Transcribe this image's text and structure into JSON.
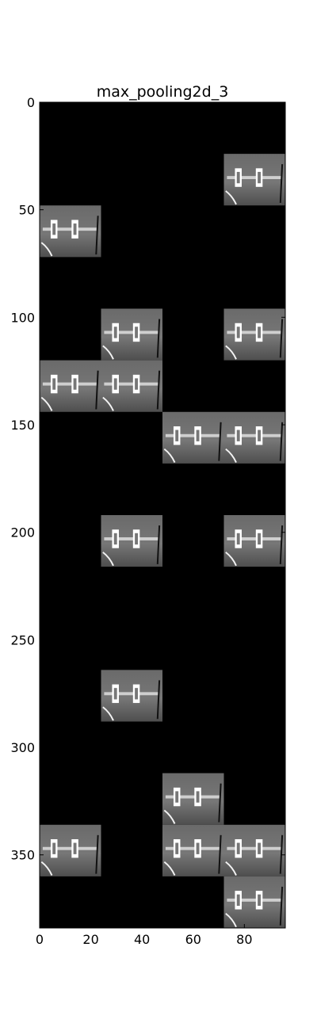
{
  "chart_data": {
    "type": "heatmap",
    "title": "max_pooling2d_3",
    "xlabel": "",
    "ylabel": "",
    "xlim": [
      0,
      96
    ],
    "ylim": [
      384,
      0
    ],
    "x_ticks": [
      0,
      20,
      40,
      60,
      80
    ],
    "y_ticks": [
      0,
      50,
      100,
      150,
      200,
      250,
      300,
      350
    ],
    "colormap": "gray",
    "background_color": "#000000",
    "grid": false,
    "tile_size": 24,
    "grid_columns": 4,
    "grid_rows": 16,
    "active_tiles": [
      {
        "row": 1,
        "col": 3
      },
      {
        "row": 2,
        "col": 0
      },
      {
        "row": 4,
        "col": 1
      },
      {
        "row": 4,
        "col": 3
      },
      {
        "row": 5,
        "col": 0
      },
      {
        "row": 5,
        "col": 1
      },
      {
        "row": 6,
        "col": 2
      },
      {
        "row": 6,
        "col": 3
      },
      {
        "row": 8,
        "col": 1
      },
      {
        "row": 8,
        "col": 3
      },
      {
        "row": 11,
        "col": 1
      },
      {
        "row": 13,
        "col": 2
      },
      {
        "row": 14,
        "col": 0
      },
      {
        "row": 14,
        "col": 2
      },
      {
        "row": 14,
        "col": 3
      },
      {
        "row": 15,
        "col": 3
      }
    ]
  }
}
